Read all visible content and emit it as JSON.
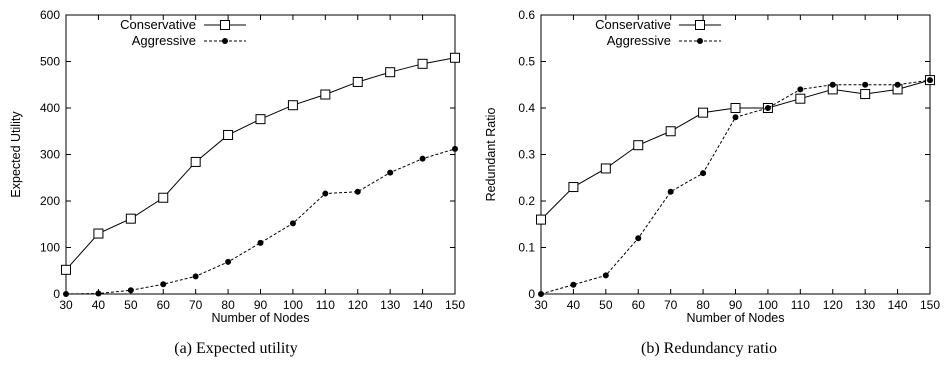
{
  "figures": {
    "a": {
      "caption": "(a)  Expected utility"
    },
    "b": {
      "caption": "(b)  Redundancy ratio"
    }
  },
  "chart_data": [
    {
      "type": "line",
      "title": "",
      "xlabel": "Number of Nodes",
      "ylabel": "Expected Utility",
      "xlim": [
        30,
        150
      ],
      "ylim": [
        0,
        600
      ],
      "x": [
        30,
        40,
        50,
        60,
        70,
        80,
        90,
        100,
        110,
        120,
        130,
        140,
        150
      ],
      "xticks": [
        "30",
        "40",
        "50",
        "60",
        "70",
        "80",
        "90",
        "100",
        "110",
        "120",
        "130",
        "140",
        "150"
      ],
      "yticks": [
        "0",
        "100",
        "200",
        "300",
        "400",
        "500",
        "600"
      ],
      "ytick_values": [
        0,
        100,
        200,
        300,
        400,
        500,
        600
      ],
      "legend_position": "top-left",
      "grid": false,
      "series": [
        {
          "name": "Conservative",
          "marker": "open-square",
          "line": "solid",
          "values": [
            52,
            130,
            162,
            207,
            284,
            342,
            376,
            406,
            429,
            456,
            477,
            495,
            508
          ]
        },
        {
          "name": "Aggressive",
          "marker": "filled-circle",
          "line": "dashed",
          "values": [
            0,
            1,
            8,
            21,
            38,
            69,
            110,
            152,
            216,
            220,
            261,
            291,
            312
          ]
        }
      ]
    },
    {
      "type": "line",
      "title": "",
      "xlabel": "Number of Nodes",
      "ylabel": "Redundant Ratio",
      "xlim": [
        30,
        150
      ],
      "ylim": [
        0,
        0.6
      ],
      "x": [
        30,
        40,
        50,
        60,
        70,
        80,
        90,
        100,
        110,
        120,
        130,
        140,
        150
      ],
      "xticks": [
        "30",
        "40",
        "50",
        "60",
        "70",
        "80",
        "90",
        "100",
        "110",
        "120",
        "130",
        "140",
        "150"
      ],
      "yticks": [
        "0",
        "0.1",
        "0.2",
        "0.3",
        "0.4",
        "0.5",
        "0.6"
      ],
      "ytick_values": [
        0,
        0.1,
        0.2,
        0.3,
        0.4,
        0.5,
        0.6
      ],
      "legend_position": "top-left",
      "grid": false,
      "series": [
        {
          "name": "Conservative",
          "marker": "open-square",
          "line": "solid",
          "values": [
            0.16,
            0.23,
            0.27,
            0.32,
            0.35,
            0.39,
            0.4,
            0.4,
            0.42,
            0.44,
            0.43,
            0.44,
            0.46
          ]
        },
        {
          "name": "Aggressive",
          "marker": "filled-circle",
          "line": "dashed",
          "values": [
            0.0,
            0.02,
            0.04,
            0.12,
            0.22,
            0.26,
            0.38,
            0.4,
            0.44,
            0.45,
            0.45,
            0.45,
            0.46
          ]
        }
      ]
    }
  ]
}
